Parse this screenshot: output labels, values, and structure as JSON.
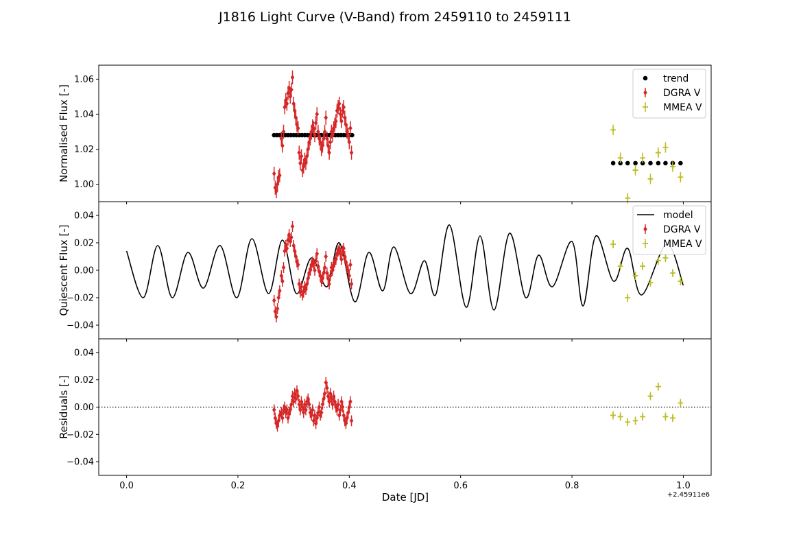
{
  "figure": {
    "title": "J1816 Light Curve (V-Band) from 2459110 to 2459111",
    "x_offset_label": "+2.45911e6"
  },
  "colors": {
    "dgra": "#d62728",
    "mmea": "#bcbd22",
    "trend": "#000000",
    "model": "#000000"
  },
  "chart_data": [
    {
      "type": "scatter",
      "panel": "top",
      "title": "",
      "ylabel": "Normalised Flux [-]",
      "xlabel": "",
      "xlim": [
        -0.05,
        1.05
      ],
      "ylim": [
        0.99,
        1.068
      ],
      "yticks": [
        1.0,
        1.02,
        1.04,
        1.06
      ],
      "ytick_labels": [
        "1.00",
        "1.02",
        "1.04",
        "1.06"
      ],
      "legend": "top-right",
      "series": [
        {
          "name": "trend",
          "marker": "circle",
          "color": "#000000",
          "x": [
            0.265,
            0.27,
            0.275,
            0.28,
            0.285,
            0.29,
            0.295,
            0.3,
            0.305,
            0.31,
            0.315,
            0.32,
            0.325,
            0.33,
            0.335,
            0.34,
            0.345,
            0.35,
            0.355,
            0.36,
            0.365,
            0.37,
            0.375,
            0.38,
            0.385,
            0.39,
            0.395,
            0.4,
            0.405,
            0.874,
            0.887,
            0.9,
            0.914,
            0.927,
            0.941,
            0.955,
            0.968,
            0.981,
            0.995
          ],
          "y": [
            1.028,
            1.028,
            1.028,
            1.028,
            1.028,
            1.028,
            1.028,
            1.028,
            1.028,
            1.028,
            1.028,
            1.028,
            1.028,
            1.028,
            1.028,
            1.028,
            1.028,
            1.028,
            1.028,
            1.028,
            1.028,
            1.028,
            1.028,
            1.028,
            1.028,
            1.028,
            1.028,
            1.028,
            1.028,
            1.012,
            1.012,
            1.012,
            1.012,
            1.012,
            1.012,
            1.012,
            1.012,
            1.012,
            1.012
          ]
        },
        {
          "name": "DGRA V",
          "marker": "diamond",
          "color": "#d62728",
          "x": [
            0.265,
            0.267,
            0.269,
            0.271,
            0.273,
            0.275,
            0.278,
            0.28,
            0.282,
            0.284,
            0.286,
            0.288,
            0.29,
            0.292,
            0.294,
            0.296,
            0.298,
            0.3,
            0.302,
            0.304,
            0.306,
            0.308,
            0.31,
            0.312,
            0.314,
            0.316,
            0.318,
            0.32,
            0.322,
            0.324,
            0.326,
            0.328,
            0.33,
            0.332,
            0.334,
            0.336,
            0.338,
            0.34,
            0.342,
            0.344,
            0.346,
            0.348,
            0.35,
            0.352,
            0.354,
            0.356,
            0.358,
            0.36,
            0.362,
            0.364,
            0.366,
            0.368,
            0.37,
            0.372,
            0.374,
            0.376,
            0.378,
            0.38,
            0.382,
            0.384,
            0.386,
            0.388,
            0.39,
            0.392,
            0.394,
            0.396,
            0.398,
            0.4,
            0.402,
            0.404
          ],
          "y": [
            1.006,
            0.998,
            0.996,
            1.0,
            1.004,
            1.005,
            1.026,
            1.022,
            1.03,
            1.044,
            1.048,
            1.046,
            1.052,
            1.055,
            1.05,
            1.054,
            1.061,
            1.046,
            1.042,
            1.038,
            1.034,
            1.032,
            1.018,
            1.012,
            1.016,
            1.008,
            1.01,
            1.014,
            1.012,
            1.016,
            1.02,
            1.024,
            1.026,
            1.03,
            1.033,
            1.032,
            1.028,
            1.035,
            1.04,
            1.03,
            1.026,
            1.024,
            1.02,
            1.022,
            1.026,
            1.03,
            1.038,
            1.026,
            1.022,
            1.018,
            1.024,
            1.03,
            1.028,
            1.032,
            1.034,
            1.036,
            1.042,
            1.044,
            1.046,
            1.04,
            1.036,
            1.042,
            1.044,
            1.038,
            1.034,
            1.03,
            1.028,
            1.024,
            1.032,
            1.018
          ],
          "yerr": 0.004
        },
        {
          "name": "MMEA V",
          "marker": "plus",
          "color": "#bcbd22",
          "x": [
            0.874,
            0.887,
            0.9,
            0.914,
            0.927,
            0.941,
            0.955,
            0.968,
            0.981,
            0.995
          ],
          "y": [
            1.031,
            1.015,
            0.992,
            1.008,
            1.015,
            1.003,
            1.018,
            1.021,
            1.01,
            1.004
          ],
          "yerr": 0.003
        }
      ]
    },
    {
      "type": "line",
      "panel": "middle",
      "title": "",
      "ylabel": "Quiescent Flux [-]",
      "xlabel": "",
      "xlim": [
        -0.05,
        1.05
      ],
      "ylim": [
        -0.05,
        0.05
      ],
      "yticks": [
        -0.04,
        -0.02,
        0.0,
        0.02,
        0.04
      ],
      "ytick_labels": [
        "−0.04",
        "−0.02",
        "0.00",
        "0.02",
        "0.04"
      ],
      "legend": "top-right",
      "series": [
        {
          "name": "model",
          "marker": "line",
          "color": "#000000",
          "x": [
            0.0,
            0.03,
            0.056,
            0.082,
            0.11,
            0.138,
            0.168,
            0.198,
            0.225,
            0.255,
            0.28,
            0.305,
            0.332,
            0.36,
            0.382,
            0.41,
            0.435,
            0.46,
            0.48,
            0.51,
            0.535,
            0.555,
            0.58,
            0.61,
            0.635,
            0.66,
            0.688,
            0.717,
            0.74,
            0.765,
            0.8,
            0.82,
            0.843,
            0.875,
            0.9,
            0.925,
            0.97,
            1.0
          ],
          "y": [
            0.014,
            -0.02,
            0.018,
            -0.02,
            0.013,
            -0.013,
            0.018,
            -0.02,
            0.023,
            -0.017,
            0.022,
            -0.017,
            0.009,
            -0.012,
            0.02,
            -0.023,
            0.013,
            -0.015,
            0.017,
            -0.017,
            0.007,
            -0.018,
            0.033,
            -0.027,
            0.025,
            -0.029,
            0.027,
            -0.02,
            0.011,
            -0.012,
            0.021,
            -0.026,
            0.025,
            -0.008,
            0.016,
            -0.018,
            0.019,
            -0.011
          ]
        },
        {
          "name": "DGRA V",
          "marker": "diamond",
          "color": "#d62728",
          "x": [
            0.265,
            0.267,
            0.269,
            0.271,
            0.273,
            0.275,
            0.278,
            0.28,
            0.282,
            0.284,
            0.286,
            0.288,
            0.29,
            0.292,
            0.294,
            0.296,
            0.298,
            0.3,
            0.302,
            0.304,
            0.306,
            0.308,
            0.31,
            0.312,
            0.314,
            0.316,
            0.318,
            0.32,
            0.322,
            0.324,
            0.326,
            0.328,
            0.33,
            0.332,
            0.334,
            0.336,
            0.338,
            0.34,
            0.342,
            0.344,
            0.346,
            0.348,
            0.35,
            0.352,
            0.354,
            0.356,
            0.358,
            0.36,
            0.362,
            0.364,
            0.366,
            0.368,
            0.37,
            0.372,
            0.374,
            0.376,
            0.378,
            0.38,
            0.382,
            0.384,
            0.386,
            0.388,
            0.39,
            0.392,
            0.394,
            0.396,
            0.398,
            0.4,
            0.402,
            0.404
          ],
          "y": [
            -0.022,
            -0.03,
            -0.034,
            -0.028,
            -0.02,
            -0.015,
            -0.004,
            -0.008,
            0.002,
            0.014,
            0.018,
            0.016,
            0.022,
            0.026,
            0.021,
            0.024,
            0.032,
            0.018,
            0.014,
            0.01,
            0.006,
            0.004,
            -0.01,
            -0.016,
            -0.012,
            -0.018,
            -0.016,
            -0.012,
            -0.014,
            -0.01,
            -0.006,
            -0.002,
            0.0,
            0.004,
            0.006,
            0.005,
            0.0,
            0.007,
            0.012,
            0.003,
            -0.001,
            -0.004,
            -0.008,
            -0.006,
            -0.002,
            0.002,
            0.01,
            -0.002,
            -0.006,
            -0.01,
            -0.004,
            0.002,
            0.0,
            0.004,
            0.006,
            0.008,
            0.012,
            0.014,
            0.016,
            0.012,
            0.008,
            0.014,
            0.016,
            0.01,
            0.006,
            0.002,
            0.0,
            -0.004,
            0.004,
            -0.01
          ],
          "yerr": 0.004
        },
        {
          "name": "MMEA V",
          "marker": "plus",
          "color": "#bcbd22",
          "x": [
            0.874,
            0.887,
            0.9,
            0.914,
            0.927,
            0.941,
            0.955,
            0.968,
            0.981,
            0.995
          ],
          "y": [
            0.019,
            0.003,
            -0.02,
            -0.004,
            0.003,
            -0.009,
            0.007,
            0.009,
            -0.002,
            -0.008
          ],
          "yerr": 0.003
        }
      ]
    },
    {
      "type": "scatter",
      "panel": "bottom",
      "title": "",
      "ylabel": "Residuals [-]",
      "xlabel": "Date [JD]",
      "xlim": [
        -0.05,
        1.05
      ],
      "ylim": [
        -0.05,
        0.05
      ],
      "xticks": [
        0.0,
        0.2,
        0.4,
        0.6,
        0.8,
        1.0
      ],
      "xtick_labels": [
        "0.0",
        "0.2",
        "0.4",
        "0.6",
        "0.8",
        "1.0"
      ],
      "yticks": [
        -0.04,
        -0.02,
        0.0,
        0.02,
        0.04
      ],
      "ytick_labels": [
        "−0.04",
        "−0.02",
        "0.00",
        "0.02",
        "0.04"
      ],
      "reference_line": 0.0,
      "series": [
        {
          "name": "DGRA V",
          "marker": "diamond",
          "color": "#d62728",
          "x": [
            0.265,
            0.267,
            0.269,
            0.271,
            0.273,
            0.275,
            0.278,
            0.28,
            0.282,
            0.284,
            0.286,
            0.288,
            0.29,
            0.292,
            0.294,
            0.296,
            0.298,
            0.3,
            0.302,
            0.304,
            0.306,
            0.308,
            0.31,
            0.312,
            0.314,
            0.316,
            0.318,
            0.32,
            0.322,
            0.324,
            0.326,
            0.328,
            0.33,
            0.332,
            0.334,
            0.336,
            0.338,
            0.34,
            0.342,
            0.344,
            0.346,
            0.348,
            0.35,
            0.352,
            0.354,
            0.356,
            0.358,
            0.36,
            0.362,
            0.364,
            0.366,
            0.368,
            0.37,
            0.372,
            0.374,
            0.376,
            0.378,
            0.38,
            0.382,
            0.384,
            0.386,
            0.388,
            0.39,
            0.392,
            0.394,
            0.396,
            0.398,
            0.4,
            0.402,
            0.404
          ],
          "y": [
            -0.002,
            -0.008,
            -0.012,
            -0.014,
            -0.01,
            -0.006,
            -0.004,
            -0.008,
            -0.002,
            0.0,
            -0.004,
            -0.002,
            -0.008,
            -0.004,
            -0.002,
            0.002,
            0.008,
            0.004,
            0.01,
            0.006,
            0.012,
            0.008,
            0.002,
            -0.002,
            0.004,
            0.0,
            -0.004,
            0.002,
            -0.002,
            0.004,
            0.006,
            0.002,
            -0.004,
            -0.006,
            -0.002,
            -0.01,
            -0.006,
            -0.012,
            -0.008,
            -0.004,
            0.0,
            -0.006,
            -0.004,
            0.002,
            0.006,
            0.01,
            0.018,
            0.014,
            0.008,
            0.004,
            0.01,
            0.006,
            0.002,
            0.008,
            0.004,
            0.0,
            -0.002,
            0.002,
            -0.006,
            -0.002,
            0.004,
            0.0,
            -0.006,
            -0.01,
            -0.012,
            -0.008,
            -0.004,
            0.0,
            0.004,
            -0.01
          ],
          "yerr": 0.004
        },
        {
          "name": "MMEA V",
          "marker": "plus",
          "color": "#bcbd22",
          "x": [
            0.874,
            0.887,
            0.9,
            0.914,
            0.927,
            0.941,
            0.955,
            0.968,
            0.981,
            0.995
          ],
          "y": [
            -0.006,
            -0.007,
            -0.011,
            -0.01,
            -0.007,
            0.008,
            0.015,
            -0.007,
            -0.008,
            0.003
          ],
          "yerr": 0.003
        }
      ]
    }
  ]
}
